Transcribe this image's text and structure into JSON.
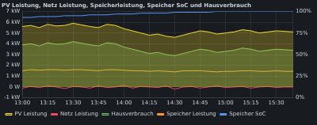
{
  "chart_data": {
    "type": "line",
    "title": "PV Leistung, Netz Leistung, Speicherleistung, Speicher SoC und Hausverbrauch",
    "categories": [
      "13:00",
      null,
      null,
      "13:15",
      null,
      null,
      "13:30",
      null,
      null,
      "13:45",
      null,
      null,
      "14:00",
      null,
      null,
      "14:15",
      null,
      null,
      "14:30",
      null,
      null,
      "14:45",
      null,
      null,
      "15:00",
      null,
      null,
      "15:15",
      null,
      null,
      "15:30",
      null,
      null
    ],
    "series": [
      {
        "name": "PV Leistung",
        "color": "#fade2a",
        "type": "area",
        "values": [
          5600,
          5700,
          5500,
          5800,
          5650,
          5700,
          5900,
          5750,
          5600,
          5500,
          5800,
          5700,
          5400,
          5200,
          5000,
          4800,
          4900,
          4700,
          4600,
          4800,
          5000,
          5200,
          5100,
          4900,
          5000,
          5100,
          5300,
          5200,
          5000,
          5100,
          5200,
          5150,
          5100
        ]
      },
      {
        "name": "Netz Leistung",
        "color": "#f2495c",
        "type": "line",
        "values": [
          -100,
          50,
          -50,
          100,
          0,
          -150,
          50,
          0,
          -100,
          100,
          -50,
          0,
          150,
          -100,
          50,
          0,
          -50,
          100,
          -200,
          0,
          50,
          -100,
          0,
          100,
          -50,
          0,
          50,
          -100,
          0,
          50,
          -50,
          0,
          0
        ]
      },
      {
        "name": "Hausverbrauch",
        "color": "#73bf69",
        "type": "area",
        "values": [
          3900,
          4000,
          3800,
          4100,
          3950,
          4000,
          4200,
          4050,
          3900,
          3800,
          4100,
          4000,
          3700,
          3500,
          3300,
          3100,
          3200,
          3000,
          2900,
          3100,
          3300,
          3500,
          3400,
          3200,
          3300,
          3400,
          3600,
          3500,
          3300,
          3400,
          3500,
          3450,
          3400
        ]
      },
      {
        "name": "Speicher Leistung",
        "color": "#ff9830",
        "type": "line",
        "values": [
          1500,
          1600,
          1550,
          1600,
          1600,
          1550,
          1600,
          1600,
          1550,
          1500,
          1600,
          1600,
          1550,
          1500,
          1500,
          1450,
          1500,
          1450,
          1400,
          1500,
          1500,
          1500,
          1450,
          1400,
          1450,
          1450,
          1500,
          1500,
          1450,
          1450,
          1500,
          1450,
          1450
        ]
      },
      {
        "name": "Speicher SoC",
        "color": "#5794f2",
        "type": "line",
        "axis": "y2",
        "values": [
          93,
          93,
          94,
          94,
          94,
          95,
          95,
          95,
          96,
          96,
          96,
          97,
          97,
          97,
          98,
          98,
          98,
          98,
          99,
          99,
          99,
          99,
          99,
          100,
          100,
          100,
          100,
          100,
          100,
          100,
          100,
          100,
          100
        ]
      }
    ],
    "ylim": [
      -1000,
      7000
    ],
    "yticks": [
      {
        "value": -1000,
        "label": "-1 kW"
      },
      {
        "value": 0,
        "label": "0 W"
      },
      {
        "value": 1000,
        "label": "1 kW"
      },
      {
        "value": 2000,
        "label": "2 kW"
      },
      {
        "value": 3000,
        "label": "3 kW"
      },
      {
        "value": 4000,
        "label": "4 kW"
      },
      {
        "value": 5000,
        "label": "5 kW"
      },
      {
        "value": 6000,
        "label": "6 kW"
      },
      {
        "value": 7000,
        "label": "7 kW"
      }
    ],
    "y2lim": [
      0,
      100
    ],
    "y2ticks": [
      {
        "value": 0,
        "label": "0%"
      },
      {
        "value": 25,
        "label": "25%"
      },
      {
        "value": 50,
        "label": "50%"
      },
      {
        "value": 75,
        "label": "75%"
      },
      {
        "value": 100,
        "label": "100%"
      }
    ],
    "grid": true,
    "legend": "bottom"
  }
}
